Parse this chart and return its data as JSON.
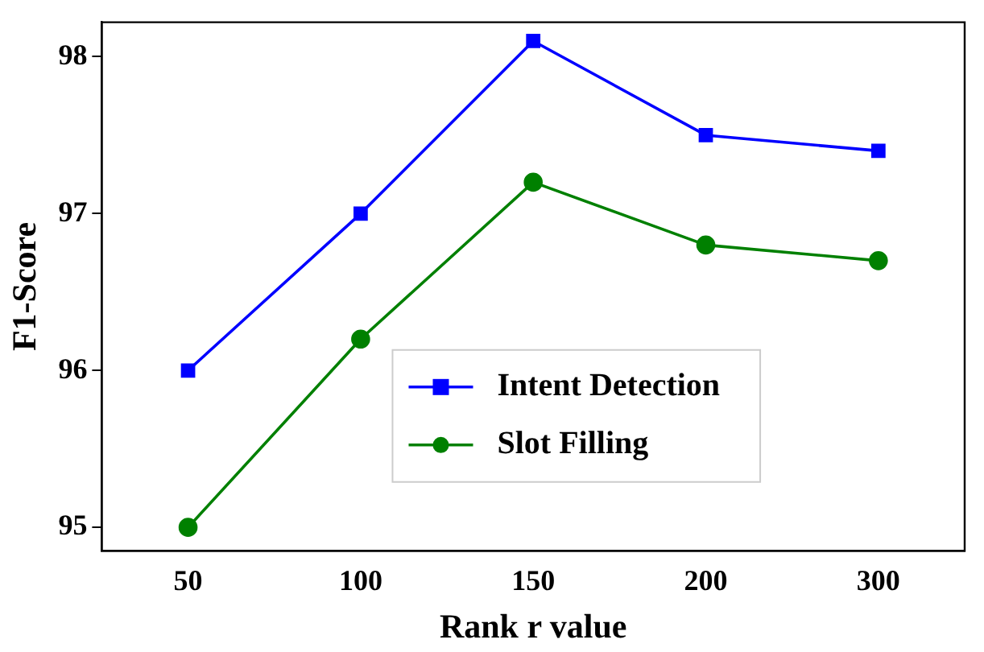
{
  "chart_data": {
    "type": "line",
    "xlabel": "Rank r value",
    "ylabel": "F1-Score",
    "categories": [
      "50",
      "100",
      "150",
      "200",
      "300"
    ],
    "series": [
      {
        "name": "Intent Detection",
        "color": "#0000ff",
        "marker": "square",
        "values": [
          96.0,
          97.0,
          98.1,
          97.5,
          97.4
        ]
      },
      {
        "name": "Slot Filling",
        "color": "#008000",
        "marker": "circle",
        "values": [
          95.0,
          96.2,
          97.2,
          96.8,
          96.7
        ]
      }
    ],
    "ylim": [
      94.85,
      98.22
    ],
    "yticks": [
      95,
      96,
      97,
      98
    ],
    "legend": "bottom",
    "grid": false
  }
}
